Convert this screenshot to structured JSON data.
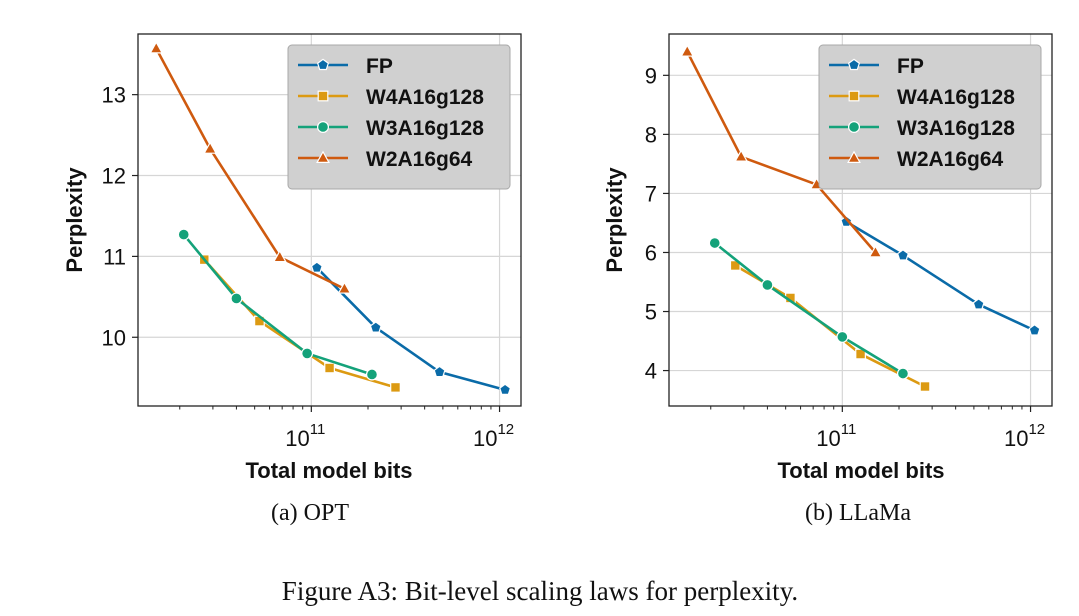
{
  "figure": {
    "caption": "Figure A3: Bit-level scaling laws for perplexity.",
    "colors": {
      "FP": "#0a6ba8",
      "W4A16g128": "#dc9a12",
      "W3A16g128": "#14a27a",
      "W2A16g64": "#cf5a0f"
    },
    "markers": {
      "FP": "pentagon",
      "W4A16g128": "square",
      "W3A16g128": "circle",
      "W2A16g64": "triangle"
    }
  },
  "chart_data": [
    {
      "type": "line",
      "subcaption": "(a) OPT",
      "xlabel": "Total model bits",
      "ylabel": "Perplexity",
      "xscale": "log",
      "xlim": [
        12000000000.0,
        1300000000000.0
      ],
      "ylim": [
        9.15,
        13.75
      ],
      "xticks": [
        100000000000.0,
        1000000000000.0
      ],
      "xtick_labels": [
        {
          "base": "10",
          "exp": "11"
        },
        {
          "base": "10",
          "exp": "12"
        }
      ],
      "yticks": [
        10,
        11,
        12,
        13
      ],
      "ytick_labels": [
        "10",
        "11",
        "12",
        "13"
      ],
      "grid": true,
      "legend_position": "top-right",
      "series": [
        {
          "name": "FP",
          "x": [
            107000000000.0,
            220000000000.0,
            480000000000.0,
            1070000000000.0
          ],
          "y": [
            10.86,
            10.12,
            9.57,
            9.35
          ]
        },
        {
          "name": "W4A16g128",
          "x": [
            27000000000.0,
            53000000000.0,
            125000000000.0,
            280000000000.0
          ],
          "y": [
            10.96,
            10.2,
            9.62,
            9.38
          ]
        },
        {
          "name": "W3A16g128",
          "x": [
            21000000000.0,
            40000000000.0,
            95000000000.0,
            210000000000.0
          ],
          "y": [
            11.27,
            10.48,
            9.8,
            9.54
          ]
        },
        {
          "name": "W2A16g64",
          "x": [
            15000000000.0,
            29000000000.0,
            68000000000.0,
            150000000000.0
          ],
          "y": [
            13.57,
            12.33,
            10.99,
            10.6
          ]
        }
      ]
    },
    {
      "type": "line",
      "subcaption": "(b) LLaMa",
      "xlabel": "Total model bits",
      "ylabel": "Perplexity",
      "xscale": "log",
      "xlim": [
        12000000000.0,
        1300000000000.0
      ],
      "ylim": [
        3.4,
        9.7
      ],
      "xticks": [
        100000000000.0,
        1000000000000.0
      ],
      "xtick_labels": [
        {
          "base": "10",
          "exp": "11"
        },
        {
          "base": "10",
          "exp": "12"
        }
      ],
      "yticks": [
        4,
        5,
        6,
        7,
        8,
        9
      ],
      "ytick_labels": [
        "4",
        "5",
        "6",
        "7",
        "8",
        "9"
      ],
      "grid": true,
      "legend_position": "top-right",
      "series": [
        {
          "name": "FP",
          "x": [
            105000000000.0,
            210000000000.0,
            530000000000.0,
            1050000000000.0
          ],
          "y": [
            6.52,
            5.95,
            5.12,
            4.68
          ]
        },
        {
          "name": "W4A16g128",
          "x": [
            27000000000.0,
            53000000000.0,
            125000000000.0,
            275000000000.0
          ],
          "y": [
            5.78,
            5.23,
            4.28,
            3.73
          ]
        },
        {
          "name": "W3A16g128",
          "x": [
            21000000000.0,
            40000000000.0,
            100000000000.0,
            210000000000.0
          ],
          "y": [
            6.16,
            5.45,
            4.57,
            3.95
          ]
        },
        {
          "name": "W2A16g64",
          "x": [
            15000000000.0,
            29000000000.0,
            73000000000.0,
            150000000000.0
          ],
          "y": [
            9.4,
            7.62,
            7.15,
            6.0
          ]
        }
      ]
    }
  ]
}
